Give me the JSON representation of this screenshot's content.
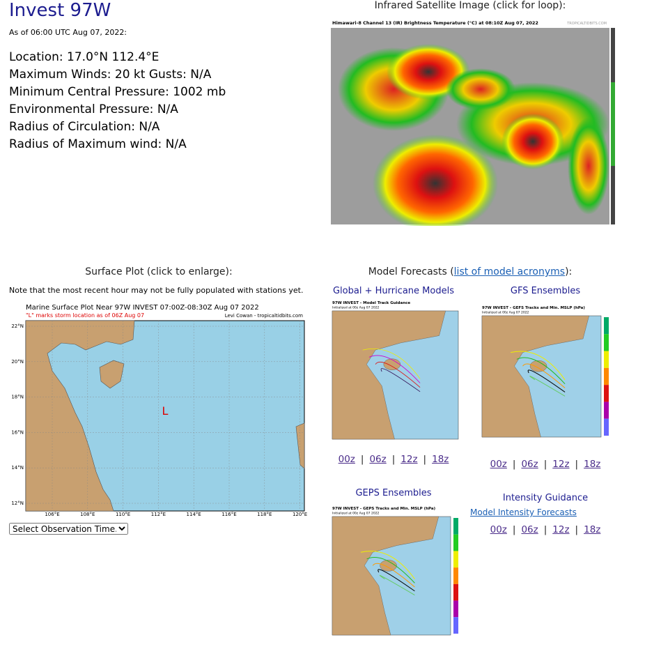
{
  "header": {
    "title": "Invest 97W",
    "as_of": "As of 06:00 UTC Aug 07, 2022:",
    "details": [
      "Location: 17.0°N 112.4°E",
      "Maximum Winds: 20 kt  Gusts: N/A",
      "Minimum Central Pressure: 1002 mb",
      "Environmental Pressure: N/A",
      "Radius of Circulation: N/A",
      "Radius of Maximum wind: N/A"
    ]
  },
  "satellite": {
    "heading": "Infrared Satellite Image (click for loop):",
    "image_title": "Himawari-8 Channel 13 (IR) Brightness Temperature (°C) at 08:10Z Aug 07, 2022",
    "image_credit": "TROPICALTIDBITS.COM"
  },
  "surface": {
    "heading": "Surface Plot (click to enlarge):",
    "note": "Note that the most recent hour may not be fully populated with stations yet.",
    "image_title": "Marine Surface Plot Near 97W INVEST 07:00Z-08:30Z Aug 07 2022",
    "image_subtitle": "\"L\" marks storm location as of 06Z Aug 07",
    "image_credit": "Levi Cowan - tropicaltidbits.com",
    "storm_marker": "L",
    "lon_labels": [
      "106°E",
      "108°E",
      "110°E",
      "112°E",
      "114°E",
      "116°E",
      "118°E",
      "120°E"
    ],
    "lat_labels": [
      "22°N",
      "20°N",
      "18°N",
      "16°N",
      "14°N",
      "12°N"
    ],
    "select_label": "Select Observation Time..."
  },
  "models": {
    "heading_prefix": "Model Forecasts (",
    "heading_link": "list of model acronyms",
    "heading_suffix": "):",
    "separator": "|",
    "global": {
      "heading": "Global + Hurricane Models",
      "image_title": "97W INVEST - Model Track Guidance",
      "image_subtitle": "Initialized at 00z Aug 07 2022",
      "links": [
        "00z",
        "06z",
        "12z",
        "18z"
      ]
    },
    "gefs": {
      "heading": "GFS Ensembles",
      "image_title": "97W INVEST - GEFS Tracks and Min. MSLP (hPa)",
      "image_subtitle": "Initialized at 00z Aug 07 2022",
      "links": [
        "00z",
        "06z",
        "12z",
        "18z"
      ]
    },
    "geps": {
      "heading": "GEPS Ensembles",
      "image_title": "97W INVEST - GEPS Tracks and Min. MSLP (hPa)",
      "image_subtitle": "Initialized at 00z Aug 07 2022"
    },
    "intensity": {
      "heading": "Intensity Guidance",
      "link": "Model Intensity Forecasts",
      "links": [
        "00z",
        "06z",
        "12z",
        "18z"
      ]
    }
  }
}
